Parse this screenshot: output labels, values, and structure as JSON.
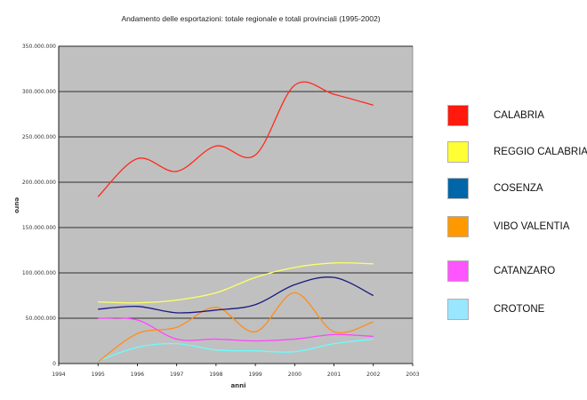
{
  "chart_data": {
    "type": "line",
    "title": "Andamento delle esportazioni: totale regionale e totali provinciali (1995-2002)",
    "xlabel": "anni",
    "ylabel": "euro",
    "x": [
      1995,
      1996,
      1997,
      1998,
      1999,
      2000,
      2001,
      2002
    ],
    "xlim": [
      1994,
      2003
    ],
    "xticks": [
      "1994",
      "1995",
      "1996",
      "1997",
      "1998",
      "1999",
      "2000",
      "2001",
      "2002",
      "2003"
    ],
    "ylim": [
      0,
      350000000
    ],
    "yticks": [
      "0",
      "50.000.000",
      "100.000.000",
      "150.000.000",
      "200.000.000",
      "250.000.000",
      "300.000.000",
      "350.000.000"
    ],
    "plot_background": "#c0c0c0",
    "grid": "horizontal",
    "legend_position": "right",
    "series": [
      {
        "name": "CALABRIA",
        "color": "#ff2a1a",
        "values": [
          184000000,
          226000000,
          212000000,
          240000000,
          230000000,
          307000000,
          297000000,
          285000000
        ]
      },
      {
        "name": "REGGIO CALABRIA",
        "color": "#ffff66",
        "values": [
          68000000,
          67000000,
          70000000,
          78000000,
          95000000,
          106000000,
          111000000,
          110000000
        ]
      },
      {
        "name": "COSENZA",
        "color": "#1a1a80",
        "values": [
          60000000,
          63000000,
          56000000,
          59000000,
          65000000,
          87000000,
          95000000,
          75000000
        ]
      },
      {
        "name": "VIBO VALENTIA",
        "color": "#ff8c1a",
        "values": [
          2000000,
          33000000,
          40000000,
          62000000,
          35000000,
          78000000,
          35000000,
          46000000
        ]
      },
      {
        "name": "CATANZARO",
        "color": "#ff44ff",
        "values": [
          50000000,
          48000000,
          27000000,
          27000000,
          25000000,
          27000000,
          32000000,
          30000000
        ]
      },
      {
        "name": "CROTONE",
        "color": "#66ffff",
        "values": [
          3000000,
          18000000,
          22000000,
          15000000,
          14000000,
          13000000,
          22000000,
          27000000
        ]
      }
    ],
    "legend_swatch_colors": [
      "#ff1a0d",
      "#ffff33",
      "#0066aa",
      "#ff9900",
      "#ff55ff",
      "#99e6ff"
    ]
  }
}
